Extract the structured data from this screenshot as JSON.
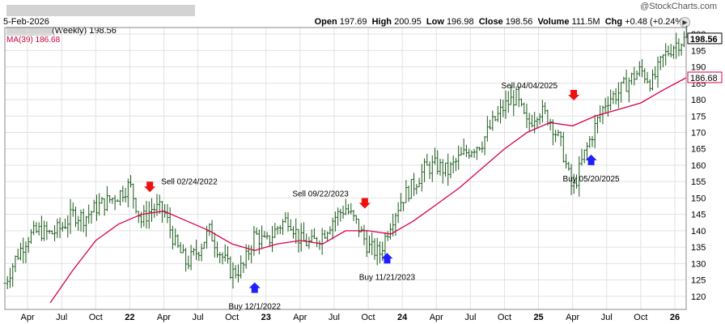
{
  "watermark": "@StockCharts.com",
  "header": {
    "date": "5-Feb-2026",
    "open_label": "Open",
    "open": "197.69",
    "high_label": "High",
    "high": "200.95",
    "low_label": "Low",
    "low": "196.98",
    "close_label": "Close",
    "close": "198.56",
    "volume_label": "Volume",
    "volume": "111.5M",
    "chg_label": "Chg",
    "chg": "+0.48 (+0.24%)",
    "nav_icon": "triangle-right-icon"
  },
  "legend": {
    "price": "(Weekly) 198.56",
    "ma": "MA(39) 186.68"
  },
  "colors": {
    "price": "#1a5a1a",
    "ma": "#d7004e",
    "up_arrow": "#1f1fff",
    "down_arrow": "#ee1111",
    "grid": "#e2e2e2"
  },
  "chart_data": {
    "type": "ohlc",
    "y_ticks": [
      120,
      125,
      130,
      135,
      140,
      145,
      150,
      155,
      160,
      165,
      170,
      175,
      180,
      185,
      190,
      195,
      200
    ],
    "ylim": [
      116,
      202
    ],
    "x_tick_labels": [
      "Apr",
      "Jul",
      "Oct",
      "22",
      "Apr",
      "Jul",
      "Oct",
      "23",
      "Apr",
      "Jul",
      "Oct",
      "24",
      "Apr",
      "Jul",
      "Oct",
      "25",
      "Apr",
      "Jul",
      "Oct",
      "26"
    ],
    "x_tick_dates": [
      "2021-04",
      "2021-07",
      "2021-10",
      "2022-01",
      "2022-04",
      "2022-07",
      "2022-10",
      "2023-01",
      "2023-04",
      "2023-07",
      "2023-10",
      "2024-01",
      "2024-04",
      "2024-07",
      "2024-10",
      "2025-01",
      "2025-04",
      "2025-07",
      "2025-10",
      "2026-01"
    ],
    "x_range": [
      "2021-02",
      "2026-02"
    ],
    "price_series": {
      "name": "(Weekly)",
      "last": 198.56,
      "close_path": [
        [
          "2021-02",
          124
        ],
        [
          "2021-03",
          132
        ],
        [
          "2021-04",
          138
        ],
        [
          "2021-05",
          140
        ],
        [
          "2021-06",
          139
        ],
        [
          "2021-07",
          141
        ],
        [
          "2021-08",
          145
        ],
        [
          "2021-09",
          144
        ],
        [
          "2021-10",
          147
        ],
        [
          "2021-11",
          149
        ],
        [
          "2021-12",
          151
        ],
        [
          "2022-01",
          154
        ],
        [
          "2022-02",
          143
        ],
        [
          "2022-03",
          147
        ],
        [
          "2022-04",
          146
        ],
        [
          "2022-05",
          136
        ],
        [
          "2022-06",
          130
        ],
        [
          "2022-07",
          134
        ],
        [
          "2022-08",
          140
        ],
        [
          "2022-09",
          133
        ],
        [
          "2022-10",
          127
        ],
        [
          "2022-11",
          129
        ],
        [
          "2022-12",
          139
        ],
        [
          "2023-01",
          136
        ],
        [
          "2023-02",
          141
        ],
        [
          "2023-03",
          144
        ],
        [
          "2023-04",
          137
        ],
        [
          "2023-05",
          136
        ],
        [
          "2023-06",
          139
        ],
        [
          "2023-07",
          144
        ],
        [
          "2023-08",
          147
        ],
        [
          "2023-09",
          142
        ],
        [
          "2023-10",
          135
        ],
        [
          "2023-11",
          133
        ],
        [
          "2023-12",
          143
        ],
        [
          "2024-01",
          150
        ],
        [
          "2024-02",
          154
        ],
        [
          "2024-03",
          159
        ],
        [
          "2024-04",
          160
        ],
        [
          "2024-05",
          158
        ],
        [
          "2024-06",
          162
        ],
        [
          "2024-07",
          165
        ],
        [
          "2024-08",
          167
        ],
        [
          "2024-09",
          173
        ],
        [
          "2024-10",
          178
        ],
        [
          "2024-11",
          181
        ],
        [
          "2024-12",
          172
        ],
        [
          "2025-01",
          177
        ],
        [
          "2025-02",
          174
        ],
        [
          "2025-03",
          166
        ],
        [
          "2025-04",
          152
        ],
        [
          "2025-05",
          163
        ],
        [
          "2025-06",
          172
        ],
        [
          "2025-07",
          180
        ],
        [
          "2025-08",
          182
        ],
        [
          "2025-09",
          186
        ],
        [
          "2025-10",
          189
        ],
        [
          "2025-11",
          185
        ],
        [
          "2025-12",
          193
        ],
        [
          "2026-01",
          197
        ],
        [
          "2026-02",
          198.56
        ]
      ]
    },
    "ma_series": {
      "name": "MA(39)",
      "last": 186.68,
      "path": [
        [
          "2021-06",
          118
        ],
        [
          "2021-08",
          128
        ],
        [
          "2021-10",
          137
        ],
        [
          "2021-12",
          142
        ],
        [
          "2022-02",
          145
        ],
        [
          "2022-04",
          146
        ],
        [
          "2022-06",
          143
        ],
        [
          "2022-08",
          140
        ],
        [
          "2022-10",
          136
        ],
        [
          "2022-12",
          134
        ],
        [
          "2023-02",
          136
        ],
        [
          "2023-04",
          137
        ],
        [
          "2023-06",
          136
        ],
        [
          "2023-08",
          140
        ],
        [
          "2023-10",
          140
        ],
        [
          "2023-12",
          139
        ],
        [
          "2024-02",
          143
        ],
        [
          "2024-04",
          148
        ],
        [
          "2024-06",
          153
        ],
        [
          "2024-08",
          159
        ],
        [
          "2024-10",
          165
        ],
        [
          "2024-12",
          170
        ],
        [
          "2025-02",
          173
        ],
        [
          "2025-04",
          172
        ],
        [
          "2025-06",
          175
        ],
        [
          "2025-08",
          177
        ],
        [
          "2025-10",
          179
        ],
        [
          "2025-12",
          183
        ],
        [
          "2026-02",
          186.68
        ]
      ]
    },
    "annotations": [
      {
        "label": "Sell 02/24/2022",
        "signal": "sell",
        "date": "2022-02-24",
        "price": 153,
        "text_pos": "right"
      },
      {
        "label": "Buy 12/1/2022",
        "signal": "buy",
        "date": "2022-12-01",
        "price": 123,
        "text_pos": "below"
      },
      {
        "label": "Sell 09/22/2023",
        "signal": "sell",
        "date": "2023-09-22",
        "price": 148,
        "text_pos": "above-left"
      },
      {
        "label": "Buy 11/21/2023",
        "signal": "buy",
        "date": "2023-11-21",
        "price": 132,
        "text_pos": "below"
      },
      {
        "label": "Sell 04/04/2025",
        "signal": "sell",
        "date": "2025-04-04",
        "price": 181,
        "text_pos": "above-left"
      },
      {
        "label": "Buy 05/20/2025",
        "signal": "buy",
        "date": "2025-05-20",
        "price": 162,
        "text_pos": "below"
      }
    ],
    "grid": true
  }
}
